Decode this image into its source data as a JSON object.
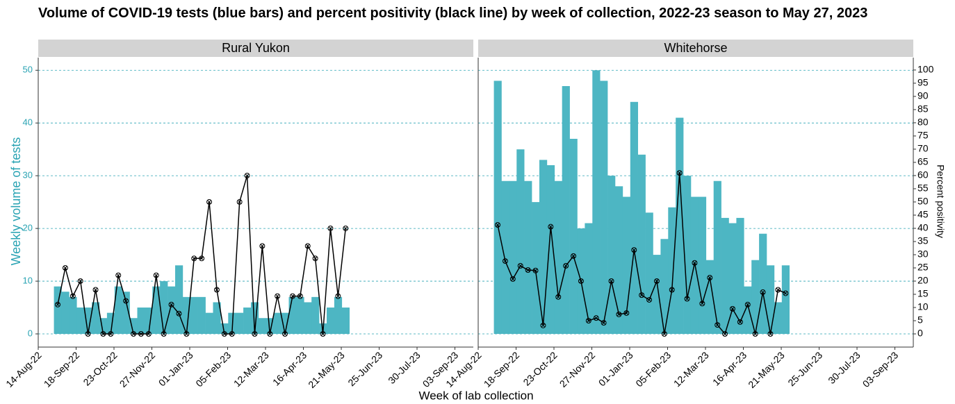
{
  "chart_data": {
    "type": "bar",
    "title": "Volume of COVID-19 tests (blue bars) and percent positivity (black line) by week of collection, 2022-23 season to May 27, 2023",
    "xlabel": "Week of lab collection",
    "ylabel": "Weekly volume of tests",
    "y2label": "Percent positivity",
    "x": [
      "2022-09-01",
      "2022-09-08",
      "2022-09-15",
      "2022-09-22",
      "2022-09-29",
      "2022-10-06",
      "2022-10-13",
      "2022-10-20",
      "2022-10-27",
      "2022-11-03",
      "2022-11-10",
      "2022-11-17",
      "2022-11-24",
      "2022-12-01",
      "2022-12-08",
      "2022-12-15",
      "2022-12-22",
      "2022-12-29",
      "2023-01-05",
      "2023-01-12",
      "2023-01-19",
      "2023-01-26",
      "2023-02-02",
      "2023-02-09",
      "2023-02-16",
      "2023-02-23",
      "2023-03-02",
      "2023-03-09",
      "2023-03-16",
      "2023-03-23",
      "2023-03-30",
      "2023-04-06",
      "2023-04-13",
      "2023-04-20",
      "2023-04-27",
      "2023-05-04",
      "2023-05-11",
      "2023-05-18",
      "2023-05-25"
    ],
    "xlim": [
      "2022-08-14",
      "2023-09-20"
    ],
    "xticks": [
      {
        "value": "2022-08-14",
        "label": "14-Aug-22"
      },
      {
        "value": "2022-09-18",
        "label": "18-Sep-22"
      },
      {
        "value": "2022-10-23",
        "label": "23-Oct-22"
      },
      {
        "value": "2022-11-27",
        "label": "27-Nov-22"
      },
      {
        "value": "2023-01-01",
        "label": "01-Jan-23"
      },
      {
        "value": "2023-02-05",
        "label": "05-Feb-23"
      },
      {
        "value": "2023-03-12",
        "label": "12-Mar-23"
      },
      {
        "value": "2023-04-16",
        "label": "16-Apr-23"
      },
      {
        "value": "2023-05-21",
        "label": "21-May-23"
      },
      {
        "value": "2023-06-25",
        "label": "25-Jun-23"
      },
      {
        "value": "2023-07-30",
        "label": "30-Jul-23"
      },
      {
        "value": "2023-09-03",
        "label": "03-Sep-23"
      }
    ],
    "ylim": [
      -2.5,
      52.4
    ],
    "yticks": [
      0,
      10,
      20,
      30,
      40,
      50
    ],
    "y2lim": [
      -5,
      104.7
    ],
    "y2ticks": [
      0,
      5,
      10,
      15,
      20,
      25,
      30,
      35,
      40,
      45,
      50,
      55,
      60,
      65,
      70,
      75,
      80,
      85,
      90,
      95,
      100
    ],
    "grid": true,
    "panels": [
      {
        "name": "Rural Yukon",
        "series": [
          {
            "type": "bar",
            "color": "#4db6c3",
            "values": [
              9,
              8,
              7,
              5,
              5,
              6,
              3,
              4,
              9,
              8,
              3,
              5,
              5,
              9,
              10,
              9,
              13,
              7,
              7,
              7,
              4,
              6,
              2,
              4,
              4,
              5,
              6,
              3,
              3,
              4,
              4,
              7,
              7,
              6,
              7,
              2,
              5,
              7,
              5
            ]
          },
          {
            "type": "line",
            "axis": "y2",
            "color": "#000000",
            "values": [
              11.1,
              25,
              14.3,
              20,
              0,
              16.7,
              0,
              0,
              22.2,
              12.5,
              0,
              0,
              0,
              22.2,
              0,
              11.1,
              7.7,
              0,
              28.6,
              28.6,
              50,
              16.7,
              0,
              0,
              50,
              60,
              0,
              33.3,
              0,
              14.3,
              0,
              14.3,
              14.3,
              33.3,
              28.6,
              0,
              40,
              14.3,
              40
            ]
          }
        ]
      },
      {
        "name": "Whitehorse",
        "series": [
          {
            "type": "bar",
            "color": "#4db6c3",
            "values": [
              48,
              29,
              29,
              35,
              29,
              25,
              33,
              32,
              29,
              47,
              37,
              20,
              21,
              50,
              48,
              30,
              28,
              26,
              44,
              34,
              23,
              15,
              18,
              24,
              41,
              30,
              26,
              26,
              14,
              29,
              22,
              21,
              22,
              9,
              14,
              19,
              13,
              6,
              13
            ]
          },
          {
            "type": "line",
            "axis": "y2",
            "color": "#000000",
            "values": [
              41.3,
              27.6,
              20.8,
              25.8,
              24.2,
              24,
              3.2,
              40.6,
              14,
              25.8,
              29.5,
              20,
              5,
              6,
              4.2,
              20,
              7.4,
              7.9,
              31.8,
              14.7,
              12.9,
              20,
              0,
              16.7,
              61,
              13.3,
              26.9,
              11.5,
              21.3,
              3.4,
              0,
              9.5,
              4.5,
              11.1,
              0,
              15.8,
              0,
              16.7,
              15.4
            ]
          }
        ]
      }
    ]
  }
}
